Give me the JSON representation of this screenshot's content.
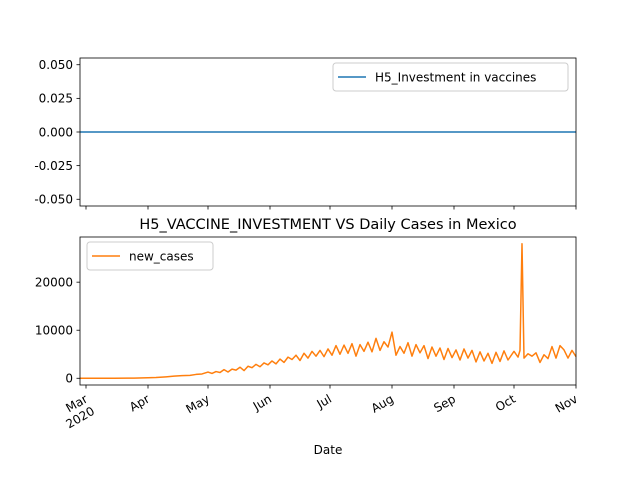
{
  "chart_data": [
    {
      "type": "line",
      "title": "",
      "xlabel": "",
      "ylabel": "",
      "ylim": [
        -0.055,
        0.055
      ],
      "yticks": [
        "0.050",
        "0.025",
        "0.000",
        "-0.025",
        "-0.050"
      ],
      "ytick_values": [
        0.05,
        0.025,
        0.0,
        -0.025,
        -0.05
      ],
      "legend": {
        "placement": "upper right"
      },
      "series": [
        {
          "name": "H5_Investment in vaccines",
          "color": "#1f77b4",
          "constant_value": 0
        }
      ]
    },
    {
      "type": "line",
      "title": "H5_VACCINE_INVESTMENT VS Daily Cases in Mexico",
      "xlabel": "Date",
      "ylabel": "",
      "ylim": [
        -1400,
        29400
      ],
      "yticks": [
        "0",
        "10000",
        "20000"
      ],
      "ytick_values": [
        0,
        10000,
        20000
      ],
      "xlim": [
        "2020-02-27",
        "2020-11-01"
      ],
      "xticks": [
        {
          "label": "Mar",
          "sub": "2020",
          "date": "2020-03-01"
        },
        {
          "label": "Apr",
          "sub": "",
          "date": "2020-04-01"
        },
        {
          "label": "May",
          "sub": "",
          "date": "2020-05-01"
        },
        {
          "label": "Jun",
          "sub": "",
          "date": "2020-06-01"
        },
        {
          "label": "Jul",
          "sub": "",
          "date": "2020-07-01"
        },
        {
          "label": "Aug",
          "sub": "",
          "date": "2020-08-01"
        },
        {
          "label": "Sep",
          "sub": "",
          "date": "2020-09-01"
        },
        {
          "label": "Oct",
          "sub": "",
          "date": "2020-10-01"
        },
        {
          "label": "Nov",
          "sub": "",
          "date": "2020-11-01"
        }
      ],
      "legend": {
        "placement": "upper left"
      },
      "series": [
        {
          "name": "new_cases",
          "color": "#ff7f0e",
          "points": [
            [
              "2020-02-27",
              0
            ],
            [
              "2020-03-15",
              10
            ],
            [
              "2020-03-25",
              30
            ],
            [
              "2020-04-01",
              100
            ],
            [
              "2020-04-05",
              150
            ],
            [
              "2020-04-10",
              300
            ],
            [
              "2020-04-14",
              450
            ],
            [
              "2020-04-18",
              550
            ],
            [
              "2020-04-22",
              600
            ],
            [
              "2020-04-25",
              800
            ],
            [
              "2020-04-28",
              900
            ],
            [
              "2020-05-01",
              1300
            ],
            [
              "2020-05-03",
              1000
            ],
            [
              "2020-05-05",
              1400
            ],
            [
              "2020-05-07",
              1200
            ],
            [
              "2020-05-09",
              1800
            ],
            [
              "2020-05-11",
              1300
            ],
            [
              "2020-05-13",
              1900
            ],
            [
              "2020-05-15",
              1700
            ],
            [
              "2020-05-17",
              2300
            ],
            [
              "2020-05-19",
              1600
            ],
            [
              "2020-05-21",
              2500
            ],
            [
              "2020-05-23",
              2200
            ],
            [
              "2020-05-25",
              2900
            ],
            [
              "2020-05-27",
              2400
            ],
            [
              "2020-05-29",
              3200
            ],
            [
              "2020-05-31",
              2800
            ],
            [
              "2020-06-02",
              3600
            ],
            [
              "2020-06-04",
              3000
            ],
            [
              "2020-06-06",
              4000
            ],
            [
              "2020-06-08",
              3300
            ],
            [
              "2020-06-10",
              4400
            ],
            [
              "2020-06-12",
              3900
            ],
            [
              "2020-06-14",
              4800
            ],
            [
              "2020-06-16",
              3700
            ],
            [
              "2020-06-18",
              5200
            ],
            [
              "2020-06-20",
              4200
            ],
            [
              "2020-06-22",
              5600
            ],
            [
              "2020-06-24",
              4600
            ],
            [
              "2020-06-26",
              5800
            ],
            [
              "2020-06-28",
              4500
            ],
            [
              "2020-06-30",
              6100
            ],
            [
              "2020-07-02",
              4800
            ],
            [
              "2020-07-04",
              6800
            ],
            [
              "2020-07-06",
              5000
            ],
            [
              "2020-07-08",
              6900
            ],
            [
              "2020-07-10",
              5200
            ],
            [
              "2020-07-12",
              7200
            ],
            [
              "2020-07-14",
              4600
            ],
            [
              "2020-07-16",
              7000
            ],
            [
              "2020-07-18",
              5600
            ],
            [
              "2020-07-20",
              7500
            ],
            [
              "2020-07-22",
              5500
            ],
            [
              "2020-07-24",
              8300
            ],
            [
              "2020-07-26",
              5800
            ],
            [
              "2020-07-28",
              7600
            ],
            [
              "2020-07-30",
              6500
            ],
            [
              "2020-08-01",
              9600
            ],
            [
              "2020-08-03",
              4800
            ],
            [
              "2020-08-05",
              6600
            ],
            [
              "2020-08-07",
              5200
            ],
            [
              "2020-08-09",
              7400
            ],
            [
              "2020-08-11",
              4600
            ],
            [
              "2020-08-13",
              7000
            ],
            [
              "2020-08-15",
              5300
            ],
            [
              "2020-08-17",
              6800
            ],
            [
              "2020-08-19",
              4100
            ],
            [
              "2020-08-21",
              6500
            ],
            [
              "2020-08-23",
              4600
            ],
            [
              "2020-08-25",
              6300
            ],
            [
              "2020-08-27",
              3900
            ],
            [
              "2020-08-29",
              6200
            ],
            [
              "2020-08-31",
              4300
            ],
            [
              "2020-09-02",
              5900
            ],
            [
              "2020-09-04",
              3800
            ],
            [
              "2020-09-06",
              6100
            ],
            [
              "2020-09-08",
              4200
            ],
            [
              "2020-09-10",
              5800
            ],
            [
              "2020-09-12",
              3400
            ],
            [
              "2020-09-14",
              5500
            ],
            [
              "2020-09-16",
              3600
            ],
            [
              "2020-09-18",
              5200
            ],
            [
              "2020-09-20",
              3100
            ],
            [
              "2020-09-22",
              5400
            ],
            [
              "2020-09-24",
              3500
            ],
            [
              "2020-09-26",
              5700
            ],
            [
              "2020-09-28",
              3800
            ],
            [
              "2020-10-01",
              5600
            ],
            [
              "2020-10-03",
              4400
            ],
            [
              "2020-10-04",
              5800
            ],
            [
              "2020-10-05",
              28000
            ],
            [
              "2020-10-06",
              4200
            ],
            [
              "2020-10-08",
              5100
            ],
            [
              "2020-10-10",
              4600
            ],
            [
              "2020-10-12",
              5300
            ],
            [
              "2020-10-14",
              3300
            ],
            [
              "2020-10-16",
              4900
            ],
            [
              "2020-10-18",
              4100
            ],
            [
              "2020-10-20",
              6600
            ],
            [
              "2020-10-22",
              4200
            ],
            [
              "2020-10-24",
              6800
            ],
            [
              "2020-10-26",
              5900
            ],
            [
              "2020-10-28",
              4200
            ],
            [
              "2020-10-30",
              5800
            ],
            [
              "2020-11-01",
              4500
            ]
          ]
        }
      ]
    }
  ]
}
